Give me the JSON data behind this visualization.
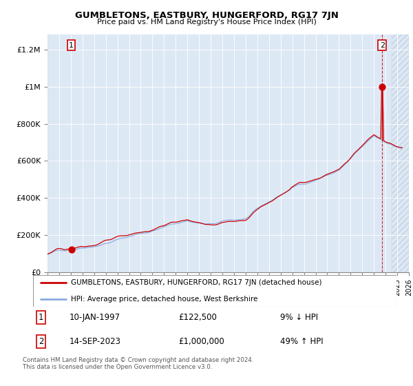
{
  "title": "GUMBLETONS, EASTBURY, HUNGERFORD, RG17 7JN",
  "subtitle": "Price paid vs. HM Land Registry's House Price Index (HPI)",
  "sale1_date": "10-JAN-1997",
  "sale1_price": 122500,
  "sale1_hpi": "9% ↓ HPI",
  "sale2_date": "14-SEP-2023",
  "sale2_price": 1000000,
  "sale2_hpi": "49% ↑ HPI",
  "legend_line1": "GUMBLETONS, EASTBURY, HUNGERFORD, RG17 7JN (detached house)",
  "legend_line2": "HPI: Average price, detached house, West Berkshire",
  "footnote": "Contains HM Land Registry data © Crown copyright and database right 2024.\nThis data is licensed under the Open Government Licence v3.0.",
  "property_color": "#cc0000",
  "hpi_color": "#88aadd",
  "background_color": "#dde8f5",
  "sale1_year": 1997.04,
  "sale2_year": 2023.71,
  "xlim_min": 1995,
  "xlim_max": 2026,
  "ylim_min": 0,
  "ylim_max": 1280000
}
